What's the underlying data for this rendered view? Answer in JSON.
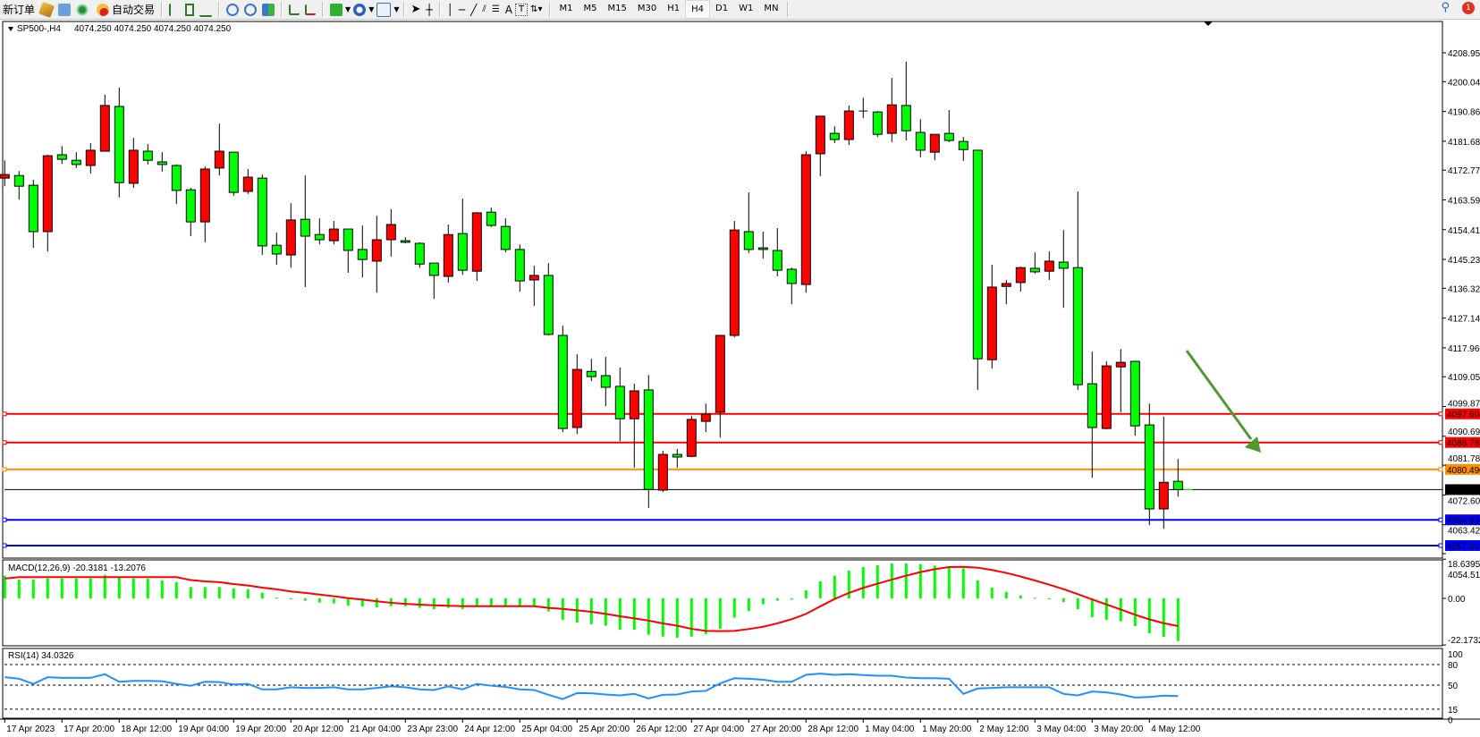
{
  "toolbar": {
    "new_order_label": "新订单",
    "auto_trading_label": "自动交易",
    "icons": [
      "new-order-icon",
      "market-watch-icon",
      "data-window-icon",
      "signals-icon",
      "auto-trading-icon",
      "bar-chart-icon",
      "candlestick-icon",
      "line-chart-icon",
      "zoom-in-icon",
      "zoom-out-icon",
      "tile-windows-icon",
      "auto-scroll-icon",
      "chart-shift-icon",
      "indicators-icon",
      "periods-icon",
      "templates-icon",
      "cursor-icon",
      "crosshair-icon",
      "vertical-line-icon",
      "horizontal-line-icon",
      "trendline-icon",
      "equidistant-channel-icon",
      "fibonacci-icon",
      "text-icon",
      "text-label-icon",
      "arrows-icon"
    ],
    "text_tool": "A",
    "timeframes": [
      "M1",
      "M5",
      "M15",
      "M30",
      "H1",
      "H4",
      "D1",
      "W1",
      "MN"
    ],
    "active_timeframe": "H4",
    "notification_count": "1"
  },
  "chart": {
    "symbol": "SP500-,H4",
    "ohlc_text": "4074.250 4074.250 4074.250 4074.250",
    "macd_label": "MACD(12,26,9) -20.3181 -13.2076",
    "rsi_label": "RSI(14) 34.0326"
  },
  "chart_data": {
    "type": "candlestick",
    "bull_color": "#ff0000",
    "bear_color": "#00ff00",
    "price_ticks": [
      "4208.950",
      "4200.040",
      "4190.860",
      "4181.680",
      "4172.770",
      "4163.590",
      "4154.410",
      "4145.230",
      "4136.320",
      "4127.140",
      "4117.960",
      "4109.050",
      "4099.870",
      "4090.690",
      "4081.780",
      "4072.600",
      "4063.420",
      "4054.510"
    ],
    "ylim": [
      4054.51,
      4208.95
    ],
    "time_labels": [
      "17 Apr 2023",
      "17 Apr 20:00",
      "18 Apr 12:00",
      "19 Apr 04:00",
      "19 Apr 20:00",
      "20 Apr 12:00",
      "21 Apr 04:00",
      "23 Apr 23:00",
      "24 Apr 12:00",
      "25 Apr 04:00",
      "25 Apr 20:00",
      "26 Apr 12:00",
      "27 Apr 04:00",
      "27 Apr 20:00",
      "28 Apr 12:00",
      "1 May 04:00",
      "1 May 20:00",
      "2 May 12:00",
      "3 May 04:00",
      "3 May 20:00",
      "4 May 12:00"
    ],
    "candles": [
      [
        4170.3,
        4175.8,
        4167.8,
        4171.4
      ],
      [
        4171.1,
        4172.5,
        4163.7,
        4167.8
      ],
      [
        4168.1,
        4169.8,
        4148.8,
        4153.8
      ],
      [
        4153.8,
        4177.5,
        4147.7,
        4177.2
      ],
      [
        4177.5,
        4180.2,
        4174.7,
        4176.1
      ],
      [
        4175.8,
        4178.3,
        4173.4,
        4174.5
      ],
      [
        4174.2,
        4181.1,
        4171.7,
        4178.9
      ],
      [
        4178.6,
        4196.0,
        4178.6,
        4192.7
      ],
      [
        4192.4,
        4198.2,
        4164.3,
        4168.9
      ],
      [
        4168.7,
        4182.7,
        4167.3,
        4178.9
      ],
      [
        4178.6,
        4180.8,
        4174.5,
        4175.8
      ],
      [
        4175.3,
        4178.3,
        4172.3,
        4174.5
      ],
      [
        4174.2,
        4174.5,
        4162.3,
        4166.5
      ],
      [
        4166.7,
        4167.3,
        4152.4,
        4156.8
      ],
      [
        4156.8,
        4173.9,
        4150.5,
        4173.1
      ],
      [
        4173.4,
        4187.1,
        4171.1,
        4178.6
      ],
      [
        4178.3,
        4178.3,
        4164.8,
        4165.9
      ],
      [
        4166.2,
        4173.1,
        4165.4,
        4170.6
      ],
      [
        4170.3,
        4171.4,
        4146.6,
        4149.4
      ],
      [
        4149.6,
        4153.5,
        4143.6,
        4146.9
      ],
      [
        4146.6,
        4162.6,
        4142.7,
        4157.4
      ],
      [
        4157.6,
        4171.1,
        4136.7,
        4152.4
      ],
      [
        4152.9,
        4157.9,
        4149.9,
        4151.3
      ],
      [
        4151.0,
        4157.1,
        4149.9,
        4154.6
      ],
      [
        4154.6,
        4154.6,
        4141.1,
        4148.0
      ],
      [
        4148.3,
        4155.7,
        4139.7,
        4145.2
      ],
      [
        4144.7,
        4158.7,
        4135.0,
        4151.3
      ],
      [
        4151.3,
        4160.7,
        4146.1,
        4156.0
      ],
      [
        4151.0,
        4152.1,
        4150.2,
        4150.5
      ],
      [
        4150.2,
        4150.5,
        4142.7,
        4143.8
      ],
      [
        4144.1,
        4144.1,
        4133.1,
        4140.3
      ],
      [
        4140.0,
        4156.0,
        4138.1,
        4152.9
      ],
      [
        4153.2,
        4164.0,
        4140.5,
        4141.9
      ],
      [
        4141.6,
        4159.8,
        4138.6,
        4159.6
      ],
      [
        4159.8,
        4161.2,
        4155.2,
        4155.7
      ],
      [
        4155.4,
        4157.9,
        4147.4,
        4148.3
      ],
      [
        4148.3,
        4149.9,
        4135.3,
        4138.6
      ],
      [
        4138.9,
        4143.3,
        4130.9,
        4140.3
      ],
      [
        4140.3,
        4144.1,
        4121.8,
        4122.1
      ],
      [
        4121.8,
        4124.8,
        4092.0,
        4093.1
      ],
      [
        4093.4,
        4116.0,
        4091.4,
        4111.3
      ],
      [
        4110.7,
        4114.6,
        4107.7,
        4109.1
      ],
      [
        4109.4,
        4115.2,
        4100.0,
        4105.8
      ],
      [
        4106.1,
        4111.9,
        4089.2,
        4096.1
      ],
      [
        4096.1,
        4106.9,
        4081.0,
        4104.7
      ],
      [
        4105.0,
        4109.6,
        4068.6,
        4074.3
      ],
      [
        4074.1,
        4086.2,
        4073.5,
        4085.1
      ],
      [
        4085.1,
        4086.8,
        4081.0,
        4084.3
      ],
      [
        4084.5,
        4097.0,
        4084.3,
        4095.9
      ],
      [
        4095.3,
        4100.8,
        4092.0,
        4097.5
      ],
      [
        4098.1,
        4121.8,
        4090.3,
        4121.8
      ],
      [
        4121.8,
        4157.1,
        4121.2,
        4154.3
      ],
      [
        4153.8,
        4165.9,
        4147.2,
        4148.3
      ],
      [
        4148.8,
        4153.8,
        4145.5,
        4148.3
      ],
      [
        4148.0,
        4154.9,
        4140.0,
        4141.9
      ],
      [
        4142.2,
        4142.7,
        4131.4,
        4137.8
      ],
      [
        4137.5,
        4178.6,
        4135.0,
        4177.5
      ],
      [
        4177.8,
        4189.4,
        4170.9,
        4189.4
      ],
      [
        4184.1,
        4186.3,
        4181.1,
        4182.2
      ],
      [
        4182.2,
        4192.7,
        4180.5,
        4191.0
      ],
      [
        4191.0,
        4195.1,
        4188.8,
        4191.0
      ],
      [
        4190.7,
        4191.0,
        4183.0,
        4183.8
      ],
      [
        4184.1,
        4201.2,
        4181.4,
        4192.9
      ],
      [
        4192.7,
        4206.2,
        4181.9,
        4184.9
      ],
      [
        4184.4,
        4188.5,
        4176.7,
        4178.9
      ],
      [
        4178.3,
        4183.8,
        4175.8,
        4183.8
      ],
      [
        4184.1,
        4191.3,
        4181.4,
        4181.9
      ],
      [
        4181.6,
        4183.0,
        4175.6,
        4179.1
      ],
      [
        4178.9,
        4178.9,
        4105.0,
        4114.6
      ],
      [
        4114.3,
        4143.6,
        4111.6,
        4136.7
      ],
      [
        4136.9,
        4138.9,
        4131.4,
        4137.8
      ],
      [
        4138.1,
        4143.0,
        4135.3,
        4142.7
      ],
      [
        4142.5,
        4147.4,
        4140.8,
        4141.4
      ],
      [
        4141.6,
        4147.7,
        4138.9,
        4144.7
      ],
      [
        4144.4,
        4154.3,
        4130.3,
        4142.5
      ],
      [
        4142.7,
        4166.2,
        4105.0,
        4106.6
      ],
      [
        4106.9,
        4116.8,
        4077.9,
        4093.4
      ],
      [
        4093.1,
        4113.8,
        4092.8,
        4112.4
      ],
      [
        4112.1,
        4117.6,
        4098.1,
        4113.5
      ],
      [
        4113.8,
        4113.8,
        4090.9,
        4093.9
      ],
      [
        4094.2,
        4100.8,
        4063.3,
        4068.3
      ],
      [
        4068.3,
        4096.7,
        4062.2,
        4076.5
      ],
      [
        4076.8,
        4083.7,
        4072.1,
        4074.25
      ]
    ],
    "horizontal_lines": [
      {
        "price": "4097.604",
        "color": "#ff0000"
      },
      {
        "price": "4088.788",
        "color": "#ff0000"
      },
      {
        "price": "4080.490",
        "color": "#ff8c00"
      },
      {
        "price": "4064.932",
        "color": "#0000ff"
      },
      {
        "price": "4057.003",
        "color": "#0000ff"
      }
    ],
    "bid": {
      "price": "4074.250",
      "color": "#000000"
    },
    "arrow_color": "#4e9a2e",
    "macd": {
      "ticks": [
        "18.6395",
        "0.00",
        "-22.1732"
      ],
      "ylim": [
        -22.1732,
        18.6395
      ],
      "histogram_color": "#00ff00",
      "signal_color": "#ff0000",
      "histogram": [
        10.8,
        8.9,
        8.9,
        9.5,
        9.5,
        9.5,
        9.5,
        11.1,
        10.1,
        9.5,
        9.4,
        8.5,
        7.7,
        5.4,
        5.4,
        5.4,
        4.7,
        4.3,
        2.6,
        0.4,
        -0.1,
        -1.1,
        -2.0,
        -2.4,
        -3.4,
        -3.8,
        -4.3,
        -3.7,
        -3.7,
        -4.5,
        -5.1,
        -4.5,
        -5.1,
        -3.8,
        -3.8,
        -3.8,
        -3.8,
        -3.8,
        -6.2,
        -10.2,
        -11.5,
        -12.3,
        -13.0,
        -14.9,
        -14.9,
        -17.3,
        -18.2,
        -18.7,
        -18.2,
        -17.0,
        -14.5,
        -9.2,
        -6.0,
        -2.8,
        -1.1,
        -0.6,
        3.8,
        8.1,
        10.8,
        13.2,
        14.9,
        15.7,
        16.6,
        16.6,
        16.2,
        15.6,
        14.9,
        14.3,
        8.5,
        5.1,
        3.1,
        1.4,
        0.3,
        -0.3,
        -1.7,
        -5.1,
        -8.9,
        -10.2,
        -10.9,
        -13.2,
        -16.6,
        -18.3,
        -20.3181
      ],
      "signal": [
        9.4,
        10.1,
        10.1,
        10.1,
        10.1,
        10.1,
        10.1,
        10.1,
        10.1,
        10.1,
        10.1,
        10.1,
        10.1,
        8.7,
        8.1,
        7.7,
        6.8,
        6.1,
        5.1,
        4.3,
        3.3,
        2.6,
        1.8,
        1.0,
        0.1,
        -0.6,
        -1.4,
        -2.1,
        -2.6,
        -3.0,
        -3.3,
        -3.5,
        -3.7,
        -3.7,
        -3.7,
        -3.7,
        -3.7,
        -3.7,
        -4.5,
        -5.0,
        -5.7,
        -6.4,
        -7.4,
        -8.5,
        -9.5,
        -10.6,
        -11.9,
        -13.0,
        -14.5,
        -15.5,
        -15.6,
        -15.5,
        -14.6,
        -13.5,
        -11.9,
        -9.9,
        -7.4,
        -3.8,
        -0.3,
        2.6,
        5.0,
        7.0,
        8.9,
        10.8,
        12.5,
        13.9,
        14.9,
        15.0,
        14.6,
        13.5,
        12.1,
        10.4,
        8.5,
        6.5,
        4.4,
        2.0,
        -0.5,
        -2.9,
        -5.3,
        -7.8,
        -10.0,
        -11.8,
        -13.2076
      ]
    },
    "rsi": {
      "ticks": [
        "100",
        "80",
        "50",
        "15",
        "0"
      ],
      "levels": [
        80,
        50,
        15
      ],
      "color": "#1e90ff",
      "values": [
        61.5,
        59.3,
        51.8,
        61.5,
        60.6,
        60.6,
        60.6,
        65.9,
        54.9,
        56.2,
        56.2,
        55.7,
        51.8,
        49.1,
        54.9,
        54.4,
        50.9,
        51.8,
        43.8,
        43.8,
        46.9,
        46.0,
        46.0,
        46.9,
        43.8,
        43.8,
        46.0,
        48.2,
        46.9,
        43.8,
        42.9,
        48.2,
        43.8,
        51.8,
        49.1,
        47.4,
        43.8,
        42.9,
        35.9,
        29.7,
        38.5,
        38.1,
        36.3,
        35.0,
        37.2,
        30.6,
        35.9,
        36.3,
        40.7,
        41.6,
        52.6,
        60.1,
        59.3,
        57.9,
        54.9,
        54.9,
        65.0,
        66.8,
        65.0,
        65.9,
        64.6,
        63.7,
        63.7,
        61.0,
        60.1,
        60.1,
        59.3,
        37.2,
        45.1,
        46.0,
        46.9,
        46.9,
        46.9,
        46.9,
        37.2,
        35.0,
        40.7,
        39.4,
        36.3,
        31.9,
        32.8,
        34.6,
        34.0326
      ]
    }
  }
}
